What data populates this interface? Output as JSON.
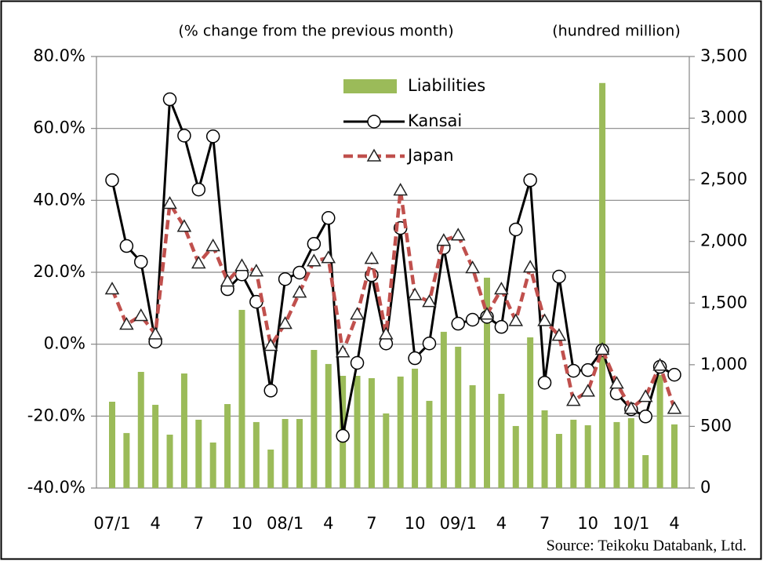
{
  "chart_data": {
    "type": "combo",
    "left_axis_label": "(% change from the previous month)",
    "right_axis_label": "(hundred million)",
    "source": "Source: Teikoku Databank, Ltd.",
    "categories": [
      "07/1",
      null,
      null,
      "4",
      null,
      null,
      "7",
      null,
      null,
      "10",
      null,
      null,
      "08/1",
      null,
      null,
      "4",
      null,
      null,
      "7",
      null,
      null,
      "10",
      null,
      null,
      "09/1",
      null,
      null,
      "4",
      null,
      null,
      "7",
      null,
      null,
      "10",
      null,
      null,
      "10/1",
      null,
      null,
      "4"
    ],
    "series": [
      {
        "name": "Liabilities",
        "type": "bar",
        "axis": "y2",
        "color": "#9bbb59",
        "values": [
          700,
          446,
          942,
          675,
          433,
          929,
          554,
          369,
          681,
          1445,
          535,
          312,
          560,
          560,
          1120,
          1006,
          910,
          910,
          891,
          605,
          904,
          968,
          707,
          1267,
          1146,
          834,
          1706,
          764,
          503,
          1222,
          630,
          439,
          554,
          509,
          3285,
          535,
          567,
          267,
          917,
          516
        ]
      },
      {
        "name": "Kansai",
        "type": "line",
        "axis": "y",
        "color": "#000000",
        "marker": "circle",
        "line_style": "solid",
        "values": [
          45.6,
          27.3,
          22.9,
          0.7,
          68.1,
          58.0,
          43.0,
          57.8,
          15.3,
          19.4,
          11.8,
          -12.9,
          18.1,
          19.9,
          27.9,
          35.1,
          -25.5,
          -5.2,
          19.2,
          0.2,
          32.3,
          -3.9,
          0.2,
          26.8,
          5.7,
          6.8,
          7.6,
          4.8,
          31.9,
          45.6,
          -10.7,
          18.8,
          -7.4,
          -7.2,
          -1.7,
          -13.7,
          -18.1,
          -20.1,
          -6.3,
          -8.5
        ]
      },
      {
        "name": "Japan",
        "type": "line",
        "axis": "y",
        "color": "#c0504d",
        "marker": "triangle",
        "line_style": "dashed",
        "values": [
          15.3,
          5.5,
          7.9,
          2.8,
          39.1,
          32.7,
          22.5,
          27.3,
          17.5,
          21.8,
          20.3,
          -0.4,
          5.7,
          14.4,
          23.1,
          24.0,
          -2.2,
          8.3,
          23.8,
          2.8,
          42.8,
          13.7,
          11.8,
          28.8,
          30.3,
          21.2,
          8.3,
          15.3,
          6.5,
          21.4,
          6.5,
          2.4,
          -15.7,
          -13.1,
          -1.5,
          -10.9,
          -17.9,
          -14.6,
          -5.9,
          -17.9
        ]
      }
    ],
    "ylim": [
      -40,
      80
    ],
    "yticks": [
      {
        "value": -40,
        "label": "-40.0%"
      },
      {
        "value": -20,
        "label": "-20.0%"
      },
      {
        "value": 0,
        "label": "0.0%"
      },
      {
        "value": 20,
        "label": "20.0%"
      },
      {
        "value": 40,
        "label": "40.0%"
      },
      {
        "value": 60,
        "label": "60.0%"
      },
      {
        "value": 80,
        "label": "80.0%"
      }
    ],
    "y2lim": [
      0,
      3500
    ],
    "y2ticks": [
      0,
      500,
      {
        "value": 1000,
        "label": "1,000"
      },
      {
        "value": 1500,
        "label": "1,500"
      },
      {
        "value": 2000,
        "label": "2,000"
      },
      {
        "value": 2500,
        "label": "2,500"
      },
      {
        "value": 3000,
        "label": "3,000"
      },
      {
        "value": 3500,
        "label": "3,500"
      }
    ],
    "grid": true,
    "legend": "top"
  }
}
